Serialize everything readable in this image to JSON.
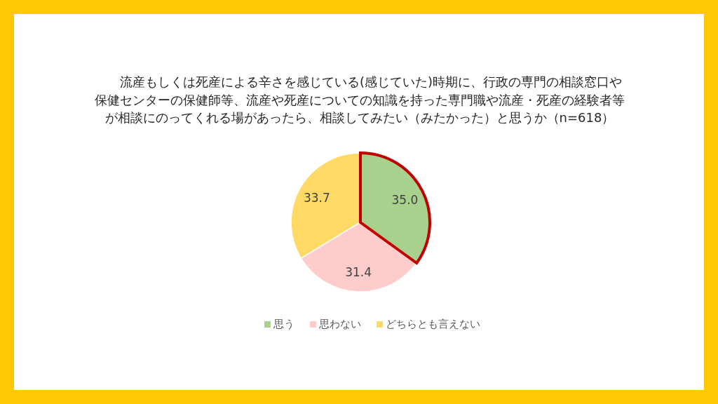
{
  "chart_data": {
    "type": "pie",
    "title": "流産もしくは死産による辛さを感じている(感じていた)時期に、行政の専門の相談窓口や保健センターの保健師等、流産や死産についての知識を持った専門職や流産・死産の経験者等が相談にのってくれる場があったら、相談してみたい（みたかった）と思うか（n=618）",
    "categories": [
      "思う",
      "思わない",
      "どちらとも言えない"
    ],
    "values": [
      35.0,
      31.4,
      33.7
    ],
    "colors": [
      "#a9d18e",
      "#ffcccc",
      "#ffd966"
    ],
    "value_labels": [
      "35.0",
      "31.4",
      "33.7"
    ],
    "legend": "bottom"
  }
}
